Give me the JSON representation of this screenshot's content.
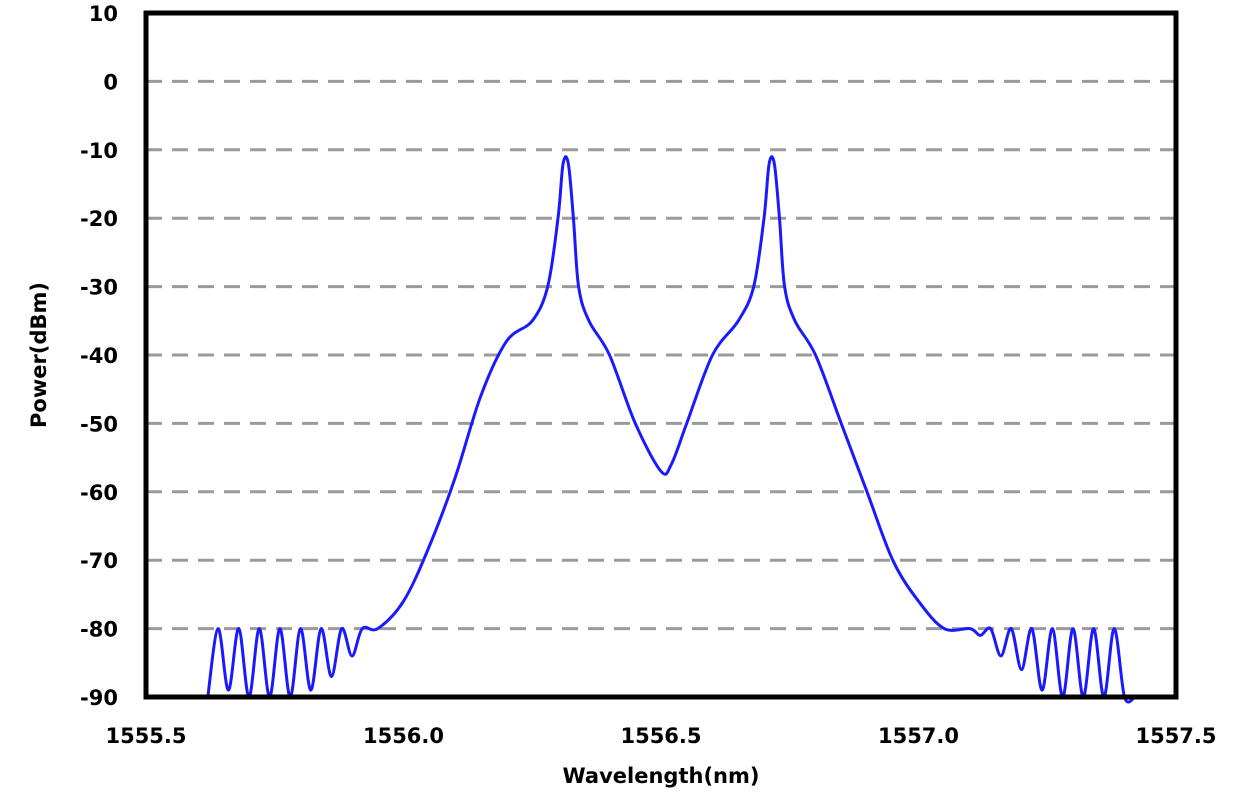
{
  "chart_data": {
    "type": "line",
    "title": "",
    "xlabel": "Wavelength(nm)",
    "ylabel": "Power(dBm)",
    "xlim": [
      1555.5,
      1557.5
    ],
    "ylim": [
      -90,
      10
    ],
    "x_ticks": [
      "1555.5",
      "1556.0",
      "1556.5",
      "1557.0",
      "1557.5"
    ],
    "y_ticks": [
      "10",
      "0",
      "-10",
      "-20",
      "-30",
      "-40",
      "-50",
      "-60",
      "-70",
      "-80",
      "-90"
    ],
    "grid": "horizontal dashed",
    "line_color": "#1a1aff",
    "series": [
      {
        "x": [
          1555.62,
          1555.64,
          1555.66,
          1555.68,
          1555.7,
          1555.72,
          1555.74,
          1555.76,
          1555.78,
          1555.8,
          1555.82,
          1555.84,
          1555.86,
          1555.88,
          1555.9,
          1555.92,
          1555.95,
          1556.0,
          1556.05,
          1556.1,
          1556.15,
          1556.2,
          1556.25,
          1556.28,
          1556.3,
          1556.31,
          1556.32,
          1556.33,
          1556.34,
          1556.36,
          1556.4,
          1556.45,
          1556.5,
          1556.52,
          1556.55,
          1556.6,
          1556.65,
          1556.68,
          1556.7,
          1556.71,
          1556.72,
          1556.73,
          1556.74,
          1556.76,
          1556.8,
          1556.85,
          1556.9,
          1556.95,
          1557.0,
          1557.05,
          1557.1,
          1557.12,
          1557.14,
          1557.16,
          1557.18,
          1557.2,
          1557.22,
          1557.24,
          1557.26,
          1557.28,
          1557.3,
          1557.32,
          1557.34,
          1557.36,
          1557.38,
          1557.4,
          1557.42
        ],
        "y": [
          -90,
          -80,
          -89,
          -80,
          -90,
          -80,
          -90,
          -80,
          -90,
          -80,
          -89,
          -80,
          -87,
          -80,
          -84,
          -80,
          -80,
          -76,
          -68,
          -58,
          -46,
          -38,
          -35,
          -30,
          -20,
          -12,
          -12,
          -20,
          -30,
          -35,
          -40,
          -50,
          -57,
          -56,
          -50,
          -40,
          -35,
          -30,
          -20,
          -12,
          -12,
          -20,
          -30,
          -35,
          -40,
          -50,
          -60,
          -70,
          -76,
          -80,
          -80,
          -81,
          -80,
          -84,
          -80,
          -86,
          -80,
          -89,
          -80,
          -90,
          -80,
          -90,
          -80,
          -90,
          -80,
          -90,
          -90
        ]
      }
    ]
  }
}
